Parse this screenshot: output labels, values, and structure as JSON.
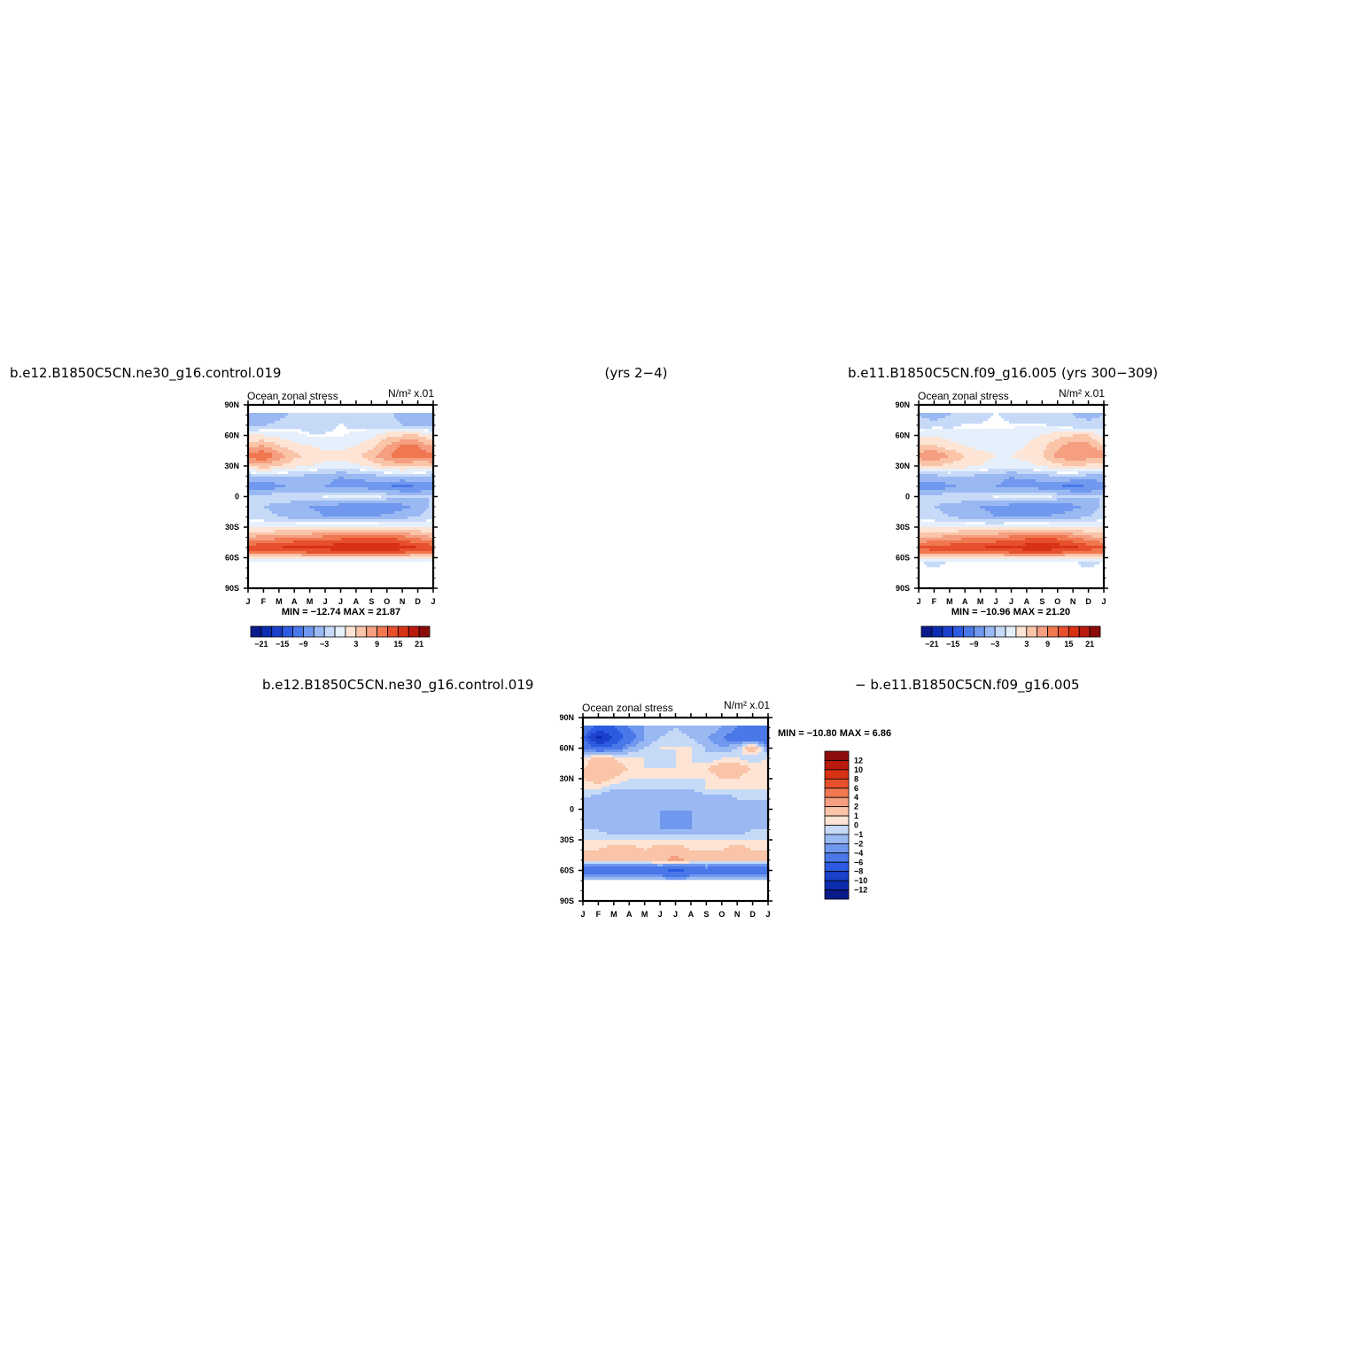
{
  "titles": {
    "top_left": "b.e12.B1850C5CN.ne30_g16.control.019",
    "top_center": "(yrs 2−4)",
    "top_right": "b.e11.B1850C5CN.f09_g16.005 (yrs 300−309)",
    "diff_left": "b.e12.B1850C5CN.ne30_g16.control.019",
    "diff_right": "− b.e11.B1850C5CN.f09_g16.005"
  },
  "chart_data": [
    {
      "type": "heatmap",
      "id": "case1",
      "title": "Ocean zonal stress",
      "units": "N/m² x.01",
      "x_ticks": [
        "J",
        "F",
        "M",
        "A",
        "M",
        "J",
        "J",
        "A",
        "S",
        "O",
        "N",
        "D",
        "J"
      ],
      "y_ticks": [
        "90N",
        "60N",
        "30N",
        "0",
        "30S",
        "60S",
        "90S"
      ],
      "stats": "MIN = −12.74  MAX =   21.87",
      "levels": [
        -24,
        -21,
        -18,
        -15,
        -12,
        -9,
        -6,
        -3,
        0,
        3,
        6,
        9,
        12,
        15,
        18,
        21,
        24
      ],
      "colorbar_labels": [
        "−21",
        "−15",
        "−9",
        "−3",
        "3",
        "9",
        "15",
        "21"
      ],
      "legend_placement": "bottom",
      "field": {
        "lat": [
          80,
          70,
          60,
          50,
          40,
          30,
          20,
          10,
          0,
          -10,
          -20,
          -30,
          -40,
          -50,
          -55,
          -60,
          -65,
          -70
        ],
        "months": [
          "J",
          "F",
          "M",
          "A",
          "M",
          "J",
          "J",
          "A",
          "S",
          "O",
          "N",
          "D",
          "J"
        ],
        "values": [
          [
            -3,
            -6,
            -4,
            -2,
            -1,
            -1,
            -1,
            -1,
            -1,
            -2,
            -4,
            -5,
            -3
          ],
          [
            -4,
            -3,
            -2,
            -1,
            -1,
            -1,
            0,
            -1,
            -1,
            -2,
            -3,
            -4,
            -4
          ],
          [
            3,
            3,
            2,
            1,
            0,
            0,
            0,
            1,
            2,
            5,
            6,
            6,
            3
          ],
          [
            8,
            9,
            6,
            4,
            3,
            2,
            2,
            3,
            5,
            9,
            13,
            12,
            8
          ],
          [
            14,
            15,
            11,
            7,
            5,
            4,
            4,
            5,
            8,
            12,
            14,
            13,
            14
          ],
          [
            6,
            8,
            6,
            4,
            3,
            2,
            2,
            2,
            4,
            6,
            7,
            6,
            6
          ],
          [
            -4,
            -3,
            -3,
            -3,
            -4,
            -5,
            -6,
            -5,
            -4,
            -3,
            -3,
            -3,
            -4
          ],
          [
            -7,
            -8,
            -7,
            -5,
            -5,
            -6,
            -7,
            -8,
            -8,
            -9,
            -10,
            -9,
            -7
          ],
          [
            -3,
            -2,
            -1,
            -1,
            -1,
            0,
            1,
            2,
            1,
            -1,
            -2,
            -3,
            -3
          ],
          [
            -2,
            -3,
            -4,
            -5,
            -6,
            -7,
            -8,
            -9,
            -9,
            -9,
            -7,
            -5,
            -2
          ],
          [
            -1,
            -2,
            -3,
            -4,
            -5,
            -6,
            -6,
            -6,
            -6,
            -5,
            -4,
            -3,
            -1
          ],
          [
            3,
            3,
            3,
            3,
            3,
            4,
            4,
            4,
            4,
            4,
            4,
            3,
            3
          ],
          [
            9,
            10,
            11,
            12,
            12,
            13,
            14,
            15,
            15,
            15,
            13,
            11,
            9
          ],
          [
            17,
            18,
            18,
            19,
            19,
            20,
            20,
            21,
            21,
            21,
            20,
            18,
            17
          ],
          [
            13,
            14,
            14,
            14,
            15,
            15,
            16,
            17,
            17,
            16,
            15,
            14,
            13
          ],
          [
            3,
            3,
            3,
            3,
            3,
            3,
            3,
            3,
            3,
            3,
            3,
            3,
            3
          ],
          [
            0,
            0,
            0,
            0,
            0,
            0,
            0,
            0,
            0,
            0,
            0,
            0,
            0
          ],
          [
            0,
            0,
            0,
            0,
            0,
            0,
            0,
            0,
            0,
            0,
            0,
            0,
            0
          ]
        ]
      }
    },
    {
      "type": "heatmap",
      "id": "case2",
      "title": "Ocean zonal stress",
      "units": "N/m² x.01",
      "x_ticks": [
        "J",
        "F",
        "M",
        "A",
        "M",
        "J",
        "J",
        "A",
        "S",
        "O",
        "N",
        "D",
        "J"
      ],
      "y_ticks": [
        "90N",
        "60N",
        "30N",
        "0",
        "30S",
        "60S",
        "90S"
      ],
      "stats": "MIN = −10.96  MAX =   21.20",
      "levels": [
        -24,
        -21,
        -18,
        -15,
        -12,
        -9,
        -6,
        -3,
        0,
        3,
        6,
        9,
        12,
        15,
        18,
        21,
        24
      ],
      "colorbar_labels": [
        "−21",
        "−15",
        "−9",
        "−3",
        "3",
        "9",
        "15",
        "21"
      ],
      "legend_placement": "bottom",
      "field": {
        "lat": [
          80,
          70,
          60,
          50,
          40,
          30,
          20,
          10,
          0,
          -10,
          -20,
          -30,
          -40,
          -50,
          -55,
          -60,
          -65,
          -70
        ],
        "months": [
          "J",
          "F",
          "M",
          "A",
          "M",
          "J",
          "J",
          "A",
          "S",
          "O",
          "N",
          "D",
          "J"
        ],
        "values": [
          [
            -3,
            -5,
            -3,
            -1,
            -1,
            0,
            -1,
            -1,
            -1,
            -2,
            -3,
            -4,
            -3
          ],
          [
            -2,
            -1,
            -1,
            0,
            0,
            0,
            0,
            0,
            0,
            -1,
            -2,
            -2,
            -2
          ],
          [
            2,
            3,
            2,
            1,
            1,
            1,
            1,
            2,
            3,
            5,
            6,
            6,
            2
          ],
          [
            6,
            6,
            4,
            3,
            2,
            2,
            2,
            3,
            5,
            8,
            11,
            10,
            6
          ],
          [
            11,
            12,
            9,
            6,
            4,
            3,
            3,
            4,
            6,
            10,
            12,
            11,
            11
          ],
          [
            5,
            6,
            5,
            4,
            3,
            2,
            2,
            2,
            3,
            5,
            6,
            5,
            5
          ],
          [
            -5,
            -4,
            -3,
            -3,
            -4,
            -5,
            -6,
            -5,
            -4,
            -3,
            -3,
            -4,
            -5
          ],
          [
            -7,
            -8,
            -7,
            -5,
            -5,
            -6,
            -7,
            -8,
            -8,
            -9,
            -10,
            -9,
            -7
          ],
          [
            -3,
            -2,
            -1,
            -1,
            -1,
            0,
            1,
            2,
            1,
            -1,
            -2,
            -3,
            -3
          ],
          [
            -2,
            -3,
            -4,
            -5,
            -6,
            -7,
            -8,
            -9,
            -9,
            -9,
            -7,
            -5,
            -2
          ],
          [
            -1,
            -2,
            -3,
            -4,
            -5,
            -6,
            -6,
            -6,
            -6,
            -5,
            -4,
            -3,
            -1
          ],
          [
            3,
            3,
            3,
            3,
            3,
            3,
            4,
            4,
            4,
            4,
            3,
            3,
            3
          ],
          [
            8,
            9,
            10,
            11,
            11,
            12,
            13,
            14,
            14,
            14,
            12,
            10,
            8
          ],
          [
            16,
            17,
            17,
            18,
            18,
            19,
            19,
            20,
            20,
            20,
            19,
            17,
            16
          ],
          [
            12,
            13,
            13,
            13,
            14,
            14,
            15,
            16,
            16,
            15,
            14,
            13,
            12
          ],
          [
            3,
            3,
            3,
            3,
            3,
            3,
            3,
            3,
            3,
            3,
            3,
            3,
            3
          ],
          [
            0,
            -1,
            0,
            0,
            0,
            0,
            0,
            0,
            0,
            0,
            0,
            -1,
            0
          ],
          [
            0,
            0,
            0,
            0,
            0,
            0,
            0,
            0,
            0,
            0,
            0,
            0,
            0
          ]
        ]
      }
    },
    {
      "type": "heatmap",
      "id": "diff",
      "title": "Ocean zonal stress",
      "units": "N/m² x.01",
      "x_ticks": [
        "J",
        "F",
        "M",
        "A",
        "M",
        "J",
        "J",
        "A",
        "S",
        "O",
        "N",
        "D",
        "J"
      ],
      "y_ticks": [
        "90N",
        "60N",
        "30N",
        "0",
        "30S",
        "60S",
        "90S"
      ],
      "stats": "MIN = −10.80  MAX =    6.86",
      "levels": [
        -14,
        -12,
        -10,
        -8,
        -6,
        -4,
        -2,
        -1,
        0,
        1,
        2,
        4,
        6,
        8,
        10,
        12,
        14
      ],
      "colorbar_labels": [
        "12",
        "10",
        "8",
        "6",
        "4",
        "2",
        "1",
        "0",
        "−1",
        "−2",
        "−4",
        "−6",
        "−8",
        "−10",
        "−12"
      ],
      "legend_placement": "right",
      "field": {
        "lat": [
          80,
          70,
          60,
          50,
          40,
          30,
          20,
          10,
          0,
          -10,
          -20,
          -30,
          -40,
          -50,
          -55,
          -60,
          -65,
          -70
        ],
        "months": [
          "J",
          "F",
          "M",
          "A",
          "M",
          "J",
          "J",
          "A",
          "S",
          "O",
          "N",
          "D",
          "J"
        ],
        "values": [
          [
            -2,
            -5,
            -4,
            -2,
            -1,
            -1,
            0,
            -1,
            0,
            -1,
            -2,
            -3,
            -2
          ],
          [
            -4,
            -9,
            -6,
            -3,
            -1,
            0,
            1,
            0,
            -1,
            -2,
            -3,
            -4,
            -4
          ],
          [
            -2,
            -4,
            -3,
            -1,
            0,
            1,
            1,
            1,
            0,
            -1,
            0,
            4,
            -2
          ],
          [
            1,
            3,
            2,
            1,
            1,
            0,
            1,
            1,
            0,
            1,
            1,
            0,
            1
          ],
          [
            2,
            3,
            3,
            2,
            1,
            1,
            1,
            1,
            2,
            3,
            3,
            2,
            2
          ],
          [
            2,
            3,
            2,
            1,
            1,
            1,
            1,
            1,
            1,
            2,
            2,
            1,
            2
          ],
          [
            1,
            1,
            0,
            0,
            0,
            0,
            0,
            0,
            1,
            1,
            1,
            1,
            1
          ],
          [
            0,
            -1,
            -1,
            -1,
            -1,
            0,
            -1,
            -1,
            -1,
            -1,
            0,
            0,
            0
          ],
          [
            -1,
            -1,
            -1,
            -1,
            -1,
            -1,
            -1,
            -1,
            -1,
            -1,
            -1,
            -1,
            -1
          ],
          [
            -1,
            -1,
            -1,
            -1,
            -1,
            -1,
            -2,
            -1,
            -1,
            -1,
            -1,
            -1,
            -1
          ],
          [
            0,
            0,
            -1,
            -1,
            -1,
            -1,
            -1,
            -1,
            -1,
            -1,
            -1,
            0,
            0
          ],
          [
            1,
            1,
            1,
            1,
            1,
            1,
            1,
            1,
            1,
            1,
            1,
            1,
            1
          ],
          [
            2,
            2,
            3,
            3,
            2,
            3,
            3,
            2,
            2,
            2,
            3,
            2,
            2
          ],
          [
            2,
            2,
            2,
            3,
            3,
            3,
            5,
            3,
            2,
            2,
            2,
            2,
            2
          ],
          [
            -2,
            -2,
            -2,
            -2,
            -2,
            -1,
            -2,
            -2,
            -1,
            -2,
            -2,
            -2,
            -2
          ],
          [
            -3,
            -4,
            -4,
            -3,
            -3,
            -3,
            -5,
            -3,
            -3,
            -3,
            -4,
            -3,
            -3
          ],
          [
            -2,
            -2,
            -2,
            -2,
            -2,
            -2,
            -3,
            -2,
            -2,
            -2,
            -2,
            -2,
            -2
          ],
          [
            0,
            0,
            0,
            0,
            0,
            0,
            0,
            0,
            0,
            0,
            0,
            0,
            0
          ]
        ]
      }
    }
  ],
  "colors": {
    "palette": [
      "#0a1a8a",
      "#0c2cb0",
      "#1a40cc",
      "#2c5ae0",
      "#4a78e8",
      "#7098ee",
      "#9ab8f2",
      "#c6daf8",
      "#e6f0fc",
      "#fde4d4",
      "#f9c4a8",
      "#f59e80",
      "#f07850",
      "#e6502c",
      "#d83214",
      "#b81a0e",
      "#8c0c0c"
    ],
    "diff_palette": [
      "#0a1a8a",
      "#0c2cb0",
      "#1a40cc",
      "#2c5ae0",
      "#4a78e8",
      "#7098ee",
      "#9ab8f2",
      "#c6daf8",
      "#fde4d4",
      "#f9c4a8",
      "#f59e80",
      "#f07850",
      "#e6502c",
      "#d83214",
      "#b81a0e",
      "#8c0c0c"
    ]
  }
}
